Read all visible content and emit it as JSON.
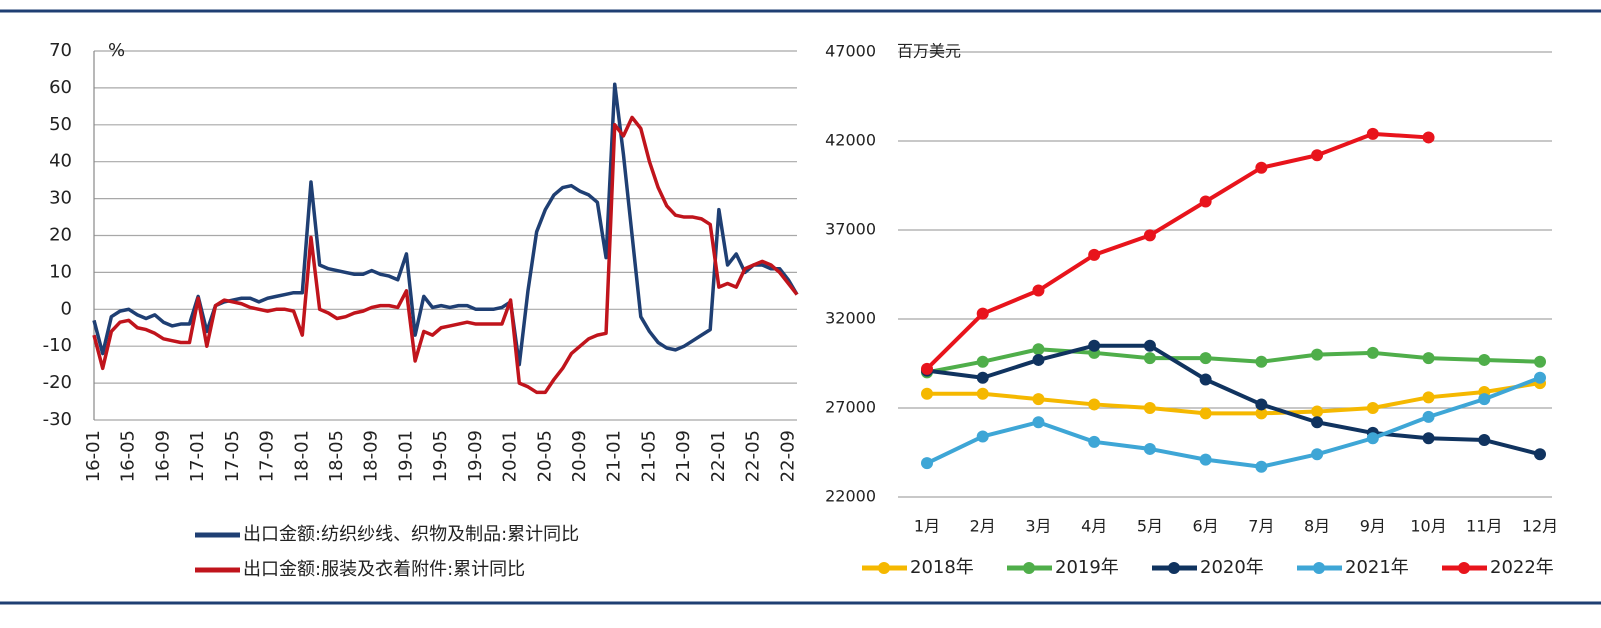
{
  "chart_data": [
    {
      "type": "line",
      "unit": "%",
      "grid": true,
      "legend": "bottom",
      "markers": false,
      "categories": [
        "16-01",
        null,
        null,
        null,
        "16-05",
        null,
        null,
        null,
        "16-09",
        null,
        null,
        null,
        "17-01",
        null,
        null,
        null,
        "17-05",
        null,
        null,
        null,
        "17-09",
        null,
        null,
        null,
        "18-01",
        null,
        null,
        null,
        "18-05",
        null,
        null,
        null,
        "18-09",
        null,
        null,
        null,
        "19-01",
        null,
        null,
        null,
        "19-05",
        null,
        null,
        null,
        "19-09",
        null,
        null,
        null,
        "20-01",
        null,
        null,
        null,
        "20-05",
        null,
        null,
        null,
        "20-09",
        null,
        null,
        null,
        "21-01",
        null,
        null,
        null,
        "21-05",
        null,
        null,
        null,
        "21-09",
        null,
        null,
        null,
        "22-01",
        null,
        null,
        null,
        "22-05",
        null,
        null,
        null,
        "22-09",
        null
      ],
      "ylim": [
        -30,
        70
      ],
      "yticks": [
        -30,
        -20,
        -10,
        0,
        10,
        20,
        30,
        40,
        50,
        60,
        70
      ],
      "series": [
        {
          "name": "出口金额:纺织纱线、织物及制品:累计同比",
          "color": "#1f3f73",
          "values": [
            -3,
            -12,
            -2,
            -0.5,
            0,
            -1.5,
            -2.5,
            -1.5,
            -3.5,
            -4.5,
            -4,
            -4,
            3.5,
            -6,
            1,
            2,
            2.5,
            3,
            3,
            2,
            3,
            3.5,
            4,
            4.5,
            4.5,
            34.5,
            12,
            11,
            10.5,
            10,
            9.5,
            9.5,
            10.5,
            9.5,
            9,
            8,
            15,
            -7,
            3.5,
            0.5,
            1,
            0.5,
            1,
            1,
            0,
            0,
            0,
            0.5,
            2,
            -15,
            5,
            21,
            27,
            31,
            33,
            33.5,
            32,
            31,
            29,
            14,
            61,
            42,
            20,
            -2,
            -6,
            -9,
            -10.5,
            -11,
            -10,
            -8.5,
            -7,
            -5.5,
            27,
            12,
            15,
            10,
            12,
            12,
            11,
            11,
            8,
            4
          ]
        },
        {
          "name": "出口金额:服装及衣着附件:累计同比",
          "color": "#c0141c",
          "values": [
            -7,
            -16,
            -6,
            -3.5,
            -3,
            -5,
            -5.5,
            -6.5,
            -8,
            -8.5,
            -9,
            -9,
            3,
            -10,
            1,
            2.5,
            2,
            1.5,
            0.5,
            0,
            -0.5,
            0,
            0,
            -0.5,
            -7,
            19.5,
            0,
            -1,
            -2.5,
            -2,
            -1,
            -0.5,
            0.5,
            1,
            1,
            0.5,
            5,
            -14,
            -6,
            -7,
            -5,
            -4.5,
            -4,
            -3.5,
            -4,
            -4,
            -4,
            -4,
            2.5,
            -20,
            -21,
            -22.5,
            -22.5,
            -19,
            -16,
            -12,
            -10,
            -8,
            -7,
            -6.5,
            50,
            47,
            52,
            49,
            40,
            33,
            28,
            25.5,
            25,
            25,
            24.5,
            23,
            6,
            7,
            6,
            11,
            12,
            13,
            12,
            10,
            7,
            4
          ]
        }
      ]
    },
    {
      "type": "line",
      "unit": "百万美元",
      "grid": true,
      "legend": "bottom",
      "markers": true,
      "categories": [
        "1月",
        "2月",
        "3月",
        "4月",
        "5月",
        "6月",
        "7月",
        "8月",
        "9月",
        "10月",
        "11月",
        "12月"
      ],
      "ylim": [
        22000,
        47000
      ],
      "yticks": [
        22000,
        27000,
        32000,
        37000,
        42000,
        47000
      ],
      "series": [
        {
          "name": "2018年",
          "color": "#f5b800",
          "values": [
            27800,
            27800,
            27500,
            27200,
            27000,
            26700,
            26700,
            26800,
            27000,
            27600,
            27900,
            28400
          ]
        },
        {
          "name": "2019年",
          "color": "#4fae4a",
          "values": [
            29000,
            29600,
            30300,
            30100,
            29800,
            29800,
            29600,
            30000,
            30100,
            29800,
            29700,
            29600
          ]
        },
        {
          "name": "2020年",
          "color": "#10335f",
          "values": [
            29100,
            28700,
            29700,
            30500,
            30500,
            28600,
            27200,
            26200,
            25600,
            25300,
            25200,
            24400
          ]
        },
        {
          "name": "2021年",
          "color": "#3ea6d6",
          "values": [
            23900,
            25400,
            26200,
            25100,
            24700,
            24100,
            23700,
            24400,
            25300,
            26500,
            27500,
            28700
          ]
        },
        {
          "name": "2022年",
          "color": "#e8141c",
          "values": [
            29200,
            32300,
            33600,
            35600,
            36700,
            38600,
            40500,
            41200,
            42400,
            42200,
            null,
            null
          ]
        }
      ]
    }
  ]
}
